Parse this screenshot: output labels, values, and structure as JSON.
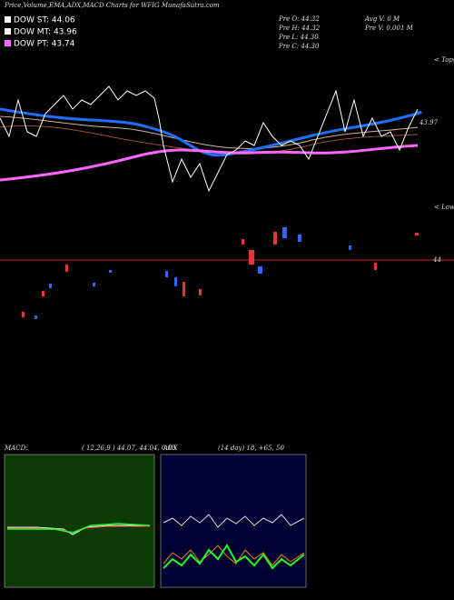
{
  "header": {
    "title": "Price,Volume,EMA,ADX,MACD Charts for WFIG MunafaSutra.com"
  },
  "legend": [
    {
      "label": "DOW ST: 44.06",
      "color": "#ffffff"
    },
    {
      "label": "DOW MT: 43.96",
      "color": "#ffffff"
    },
    {
      "label": "DOW PT: 43.74",
      "color": "#ff66ff"
    }
  ],
  "info": {
    "pre_o": "Pre  O: 44.32",
    "pre_h": "Pre  H: 44.32",
    "pre_l": "Pre  L: 44.30",
    "pre_c": "Pre  C: 44.30",
    "avg_v": "Avg V: 0  M",
    "pre_v": "Pre   V: 0.001 M"
  },
  "labels": {
    "last_price": "43.97",
    "tops": "< Tops",
    "lows": "< Lows",
    "level": "44"
  },
  "macd": {
    "name": "MACD:",
    "params": "( 12,26,9 ) 44.07, 44.04, 0.03"
  },
  "adx": {
    "name": "ADX",
    "params": "(14  day) 18, +65, 50"
  }
}
